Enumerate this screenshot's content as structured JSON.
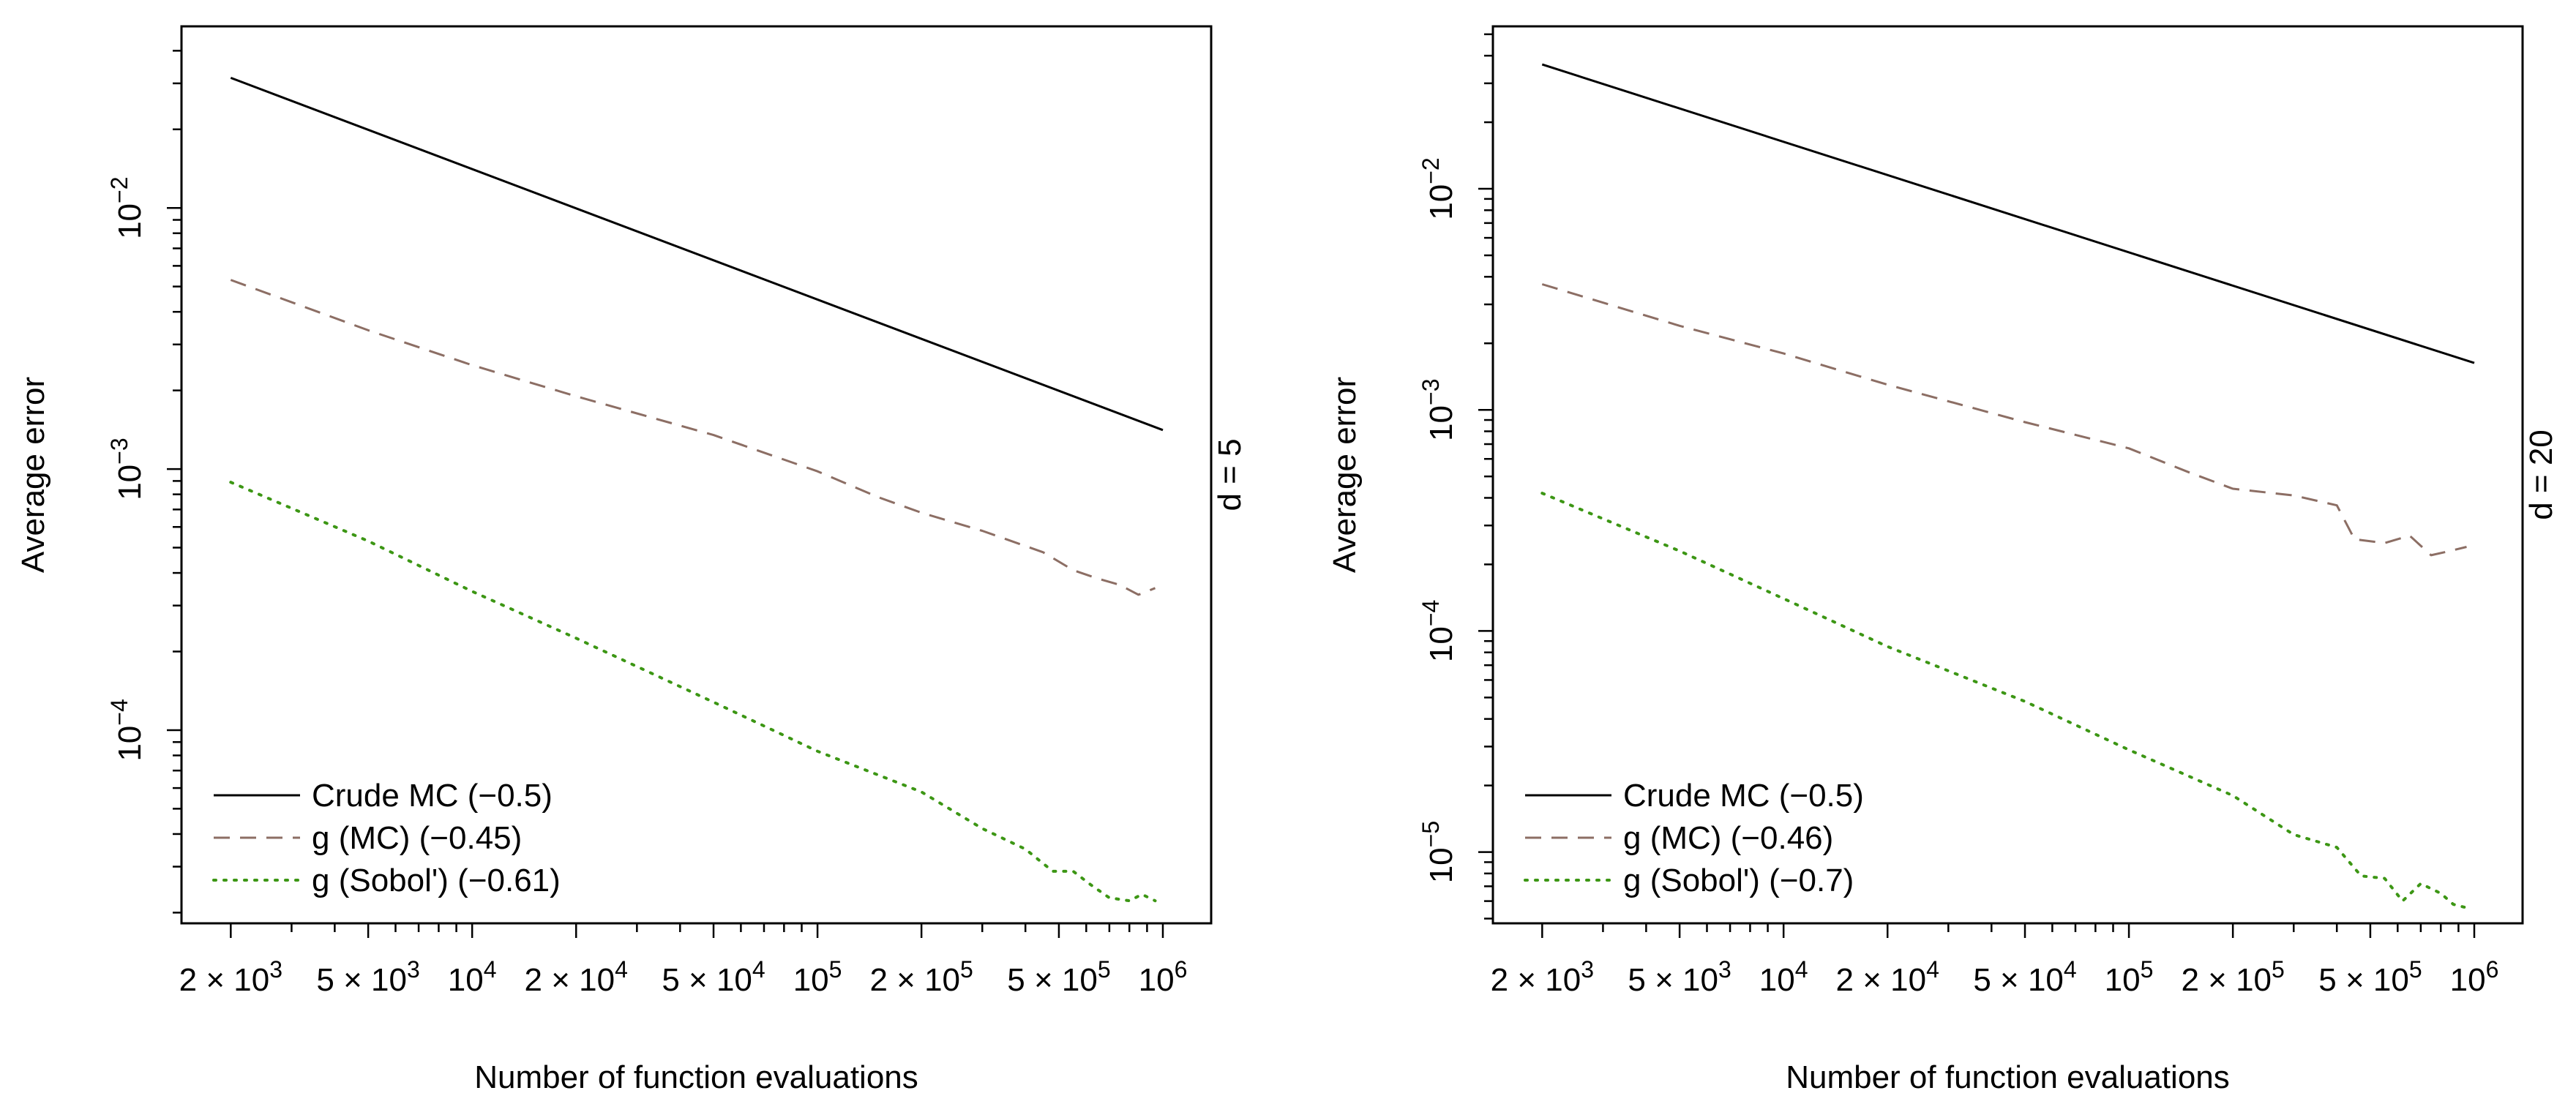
{
  "chart_data": [
    {
      "type": "line",
      "panel_label": "d = 5",
      "xlabel": "Number of function evaluations",
      "ylabel": "Average error",
      "x_scale": "log",
      "y_scale": "log",
      "xlim": [
        1440,
        1380000
      ],
      "ylim": [
        1.82e-05,
        0.0496
      ],
      "x_ticks": [
        {
          "value": 2000,
          "label": "2 × 10^3"
        },
        {
          "value": 5000,
          "label": "5 × 10^3"
        },
        {
          "value": 10000,
          "label": "10^4"
        },
        {
          "value": 20000,
          "label": "2 × 10^4"
        },
        {
          "value": 50000,
          "label": "5 × 10^4"
        },
        {
          "value": 100000,
          "label": "10^5"
        },
        {
          "value": 200000,
          "label": "2 × 10^5"
        },
        {
          "value": 500000,
          "label": "5 × 10^5"
        },
        {
          "value": 1000000,
          "label": "10^6"
        }
      ],
      "y_ticks": [
        {
          "value": 0.01,
          "label": "10^−2"
        },
        {
          "value": 0.001,
          "label": "10^−3"
        },
        {
          "value": 0.0001,
          "label": "10^−4"
        }
      ],
      "series": [
        {
          "name": "Crude MC (−0.5)",
          "style": "solid",
          "color": "#000000",
          "x": [
            2000,
            1000000
          ],
          "y": [
            0.0315,
            0.00141
          ]
        },
        {
          "name": "g (MC) (−0.45)",
          "style": "dashed",
          "color": "#8C6E64",
          "x": [
            2000,
            5000,
            10000,
            20000,
            50000,
            100000,
            150000,
            200000,
            300000,
            450000,
            550000,
            650000,
            750000,
            850000,
            950000
          ],
          "y": [
            0.0053,
            0.0034,
            0.0025,
            0.0019,
            0.00135,
            0.00098,
            0.00078,
            0.00068,
            0.00058,
            0.00048,
            0.00041,
            0.00038,
            0.00036,
            0.00033,
            0.00035
          ]
        },
        {
          "name": "g (Sobol') (−0.61)",
          "style": "dotted",
          "color": "#3C9614",
          "x": [
            2000,
            5000,
            10000,
            20000,
            50000,
            100000,
            200000,
            300000,
            400000,
            480000,
            550000,
            620000,
            700000,
            800000,
            870000,
            950000
          ],
          "y": [
            0.00089,
            0.00053,
            0.00034,
            0.000225,
            0.000128,
            8.3e-05,
            5.8e-05,
            4.2e-05,
            3.5e-05,
            2.88e-05,
            2.88e-05,
            2.55e-05,
            2.28e-05,
            2.22e-05,
            2.35e-05,
            2.22e-05
          ]
        }
      ]
    },
    {
      "type": "line",
      "panel_label": "d = 20",
      "xlabel": "Number of function evaluations",
      "ylabel": "Average error",
      "x_scale": "log",
      "y_scale": "log",
      "xlim": [
        1440,
        1380000
      ],
      "ylim": [
        4.76e-06,
        0.0543
      ],
      "x_ticks": [
        {
          "value": 2000,
          "label": "2 × 10^3"
        },
        {
          "value": 5000,
          "label": "5 × 10^3"
        },
        {
          "value": 10000,
          "label": "10^4"
        },
        {
          "value": 20000,
          "label": "2 × 10^4"
        },
        {
          "value": 50000,
          "label": "5 × 10^4"
        },
        {
          "value": 100000,
          "label": "10^5"
        },
        {
          "value": 200000,
          "label": "2 × 10^5"
        },
        {
          "value": 500000,
          "label": "5 × 10^5"
        },
        {
          "value": 1000000,
          "label": "10^6"
        }
      ],
      "y_ticks": [
        {
          "value": 0.01,
          "label": "10^−2"
        },
        {
          "value": 0.001,
          "label": "10^−3"
        },
        {
          "value": 0.0001,
          "label": "10^−4"
        },
        {
          "value": 1e-05,
          "label": "10^−5"
        }
      ],
      "series": [
        {
          "name": "Crude MC (−0.5)",
          "style": "solid",
          "color": "#000000",
          "x": [
            2000,
            1000000
          ],
          "y": [
            0.0365,
            0.00163
          ]
        },
        {
          "name": "g (MC) (−0.46)",
          "style": "dashed",
          "color": "#8C6E64",
          "x": [
            2000,
            5000,
            10000,
            20000,
            50000,
            100000,
            150000,
            200000,
            300000,
            400000,
            450000,
            550000,
            650000,
            750000,
            850000,
            950000
          ],
          "y": [
            0.0037,
            0.0024,
            0.0018,
            0.0013,
            0.00088,
            0.00067,
            0.00052,
            0.00044,
            0.00041,
            0.00037,
            0.00026,
            0.00025,
            0.00027,
            0.00022,
            0.00023,
            0.00024
          ]
        },
        {
          "name": "g (Sobol') (−0.7)",
          "style": "dotted",
          "color": "#3C9614",
          "x": [
            2000,
            5000,
            10000,
            20000,
            50000,
            100000,
            200000,
            300000,
            400000,
            470000,
            550000,
            620000,
            700000,
            800000,
            870000,
            950000
          ],
          "y": [
            0.00042,
            0.00023,
            0.00014,
            8.5e-05,
            4.8e-05,
            2.9e-05,
            1.8e-05,
            1.2e-05,
            1.05e-05,
            7.8e-06,
            7.6e-06,
            6e-06,
            7.2e-06,
            6.5e-06,
            5.8e-06,
            5.6e-06
          ]
        }
      ]
    }
  ]
}
